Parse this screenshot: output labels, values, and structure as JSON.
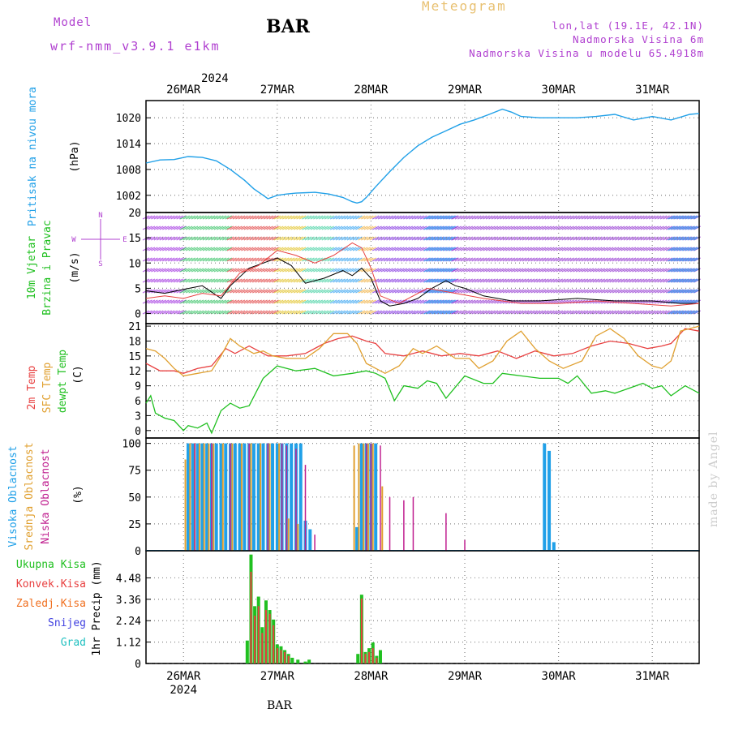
{
  "header": {
    "model_label": "Model",
    "model_name": "wrf-nmm_v3.9.1 e1km",
    "station": "BAR",
    "meteogram_label": "Meteogram",
    "location": "lon,lat (19.1E, 42.1N)",
    "elevation": "Nadmorska Visina 6m",
    "model_elevation": "Nadmorska Visina u modelu 65.4918m"
  },
  "footer_station": "BAR",
  "watermark": "made by Angel",
  "colors": {
    "pressure": "#20a0e8",
    "temp_2m": "#e84040",
    "temp_sfc": "#e0a030",
    "dewpoint": "#20c020",
    "cloud_high": "#20a0e8",
    "cloud_mid": "#e0a030",
    "cloud_low": "#c02090",
    "precip_total": "#20c020",
    "precip_conv": "#e84040",
    "precip_frozen": "#f07020",
    "snow": "#4040e0",
    "hail": "#20c0c0",
    "header_text": "#b040d0"
  },
  "chart_data": [
    {
      "type": "line",
      "panel": "pressure",
      "ylabel_primary": "Pritisak na nivou mora",
      "ylabel_unit": "(hPa)",
      "ylim": [
        998,
        1024
      ],
      "yticks": [
        1002,
        1008,
        1014,
        1020
      ],
      "xlim": [
        25.6,
        31.5
      ],
      "grid": true,
      "top_axis": {
        "year": "2024",
        "labels": [
          "26MAR",
          "27MAR",
          "28MAR",
          "29MAR",
          "30MAR",
          "31MAR"
        ]
      },
      "series": [
        {
          "x": [
            25.6,
            25.75,
            25.9,
            26.05,
            26.2,
            26.35,
            26.5,
            26.65,
            26.75,
            26.85,
            26.9,
            27.0,
            27.1,
            27.2,
            27.4,
            27.55,
            27.7,
            27.8,
            27.85,
            27.9,
            27.95,
            28.05,
            28.2,
            28.35,
            28.5,
            28.65,
            28.8,
            28.95,
            29.1,
            29.25,
            29.4,
            29.5,
            29.6,
            29.8,
            30.0,
            30.2,
            30.4,
            30.6,
            30.8,
            31.0,
            31.2,
            31.4,
            31.5
          ],
          "y": [
            1009.5,
            1010.2,
            1010.3,
            1011.0,
            1010.8,
            1010.0,
            1008.0,
            1005.5,
            1003.5,
            1002.0,
            1001.2,
            1002.0,
            1002.3,
            1002.5,
            1002.7,
            1002.3,
            1001.5,
            1000.5,
            1000.2,
            1000.5,
            1001.5,
            1004.0,
            1007.5,
            1010.8,
            1013.5,
            1015.5,
            1017.0,
            1018.5,
            1019.5,
            1020.7,
            1022.0,
            1021.3,
            1020.3,
            1020.0,
            1020.0,
            1020.0,
            1020.3,
            1020.8,
            1019.5,
            1020.3,
            1019.5,
            1020.8,
            1021.0
          ]
        }
      ]
    },
    {
      "type": "line",
      "panel": "wind",
      "ylabel_primary": [
        "10m Vjetar",
        "Brzina i Pravac"
      ],
      "ylabel_unit": "(m/s)",
      "compass": {
        "north": "N",
        "west": "W",
        "east": "E",
        "south": "S"
      },
      "ylim": [
        -2,
        20
      ],
      "yticks": [
        0,
        5,
        10,
        15,
        20
      ],
      "xlim": [
        25.6,
        31.5
      ],
      "grid": true,
      "series": [
        {
          "name": "speed",
          "x": [
            25.6,
            25.8,
            26.0,
            26.2,
            26.4,
            26.5,
            26.7,
            26.85,
            27.0,
            27.15,
            27.3,
            27.5,
            27.7,
            27.8,
            27.9,
            28.0,
            28.1,
            28.2,
            28.35,
            28.5,
            28.65,
            28.8,
            28.9,
            29.0,
            29.2,
            29.5,
            29.8,
            30.2,
            30.6,
            31.0,
            31.3,
            31.5
          ],
          "y": [
            4.5,
            4.0,
            4.8,
            5.5,
            3.0,
            5.5,
            9.0,
            10.0,
            11.0,
            9.5,
            6.0,
            7.0,
            8.5,
            7.5,
            9.0,
            7.0,
            2.5,
            1.5,
            2.0,
            3.0,
            5.0,
            6.5,
            5.5,
            5.0,
            3.5,
            2.5,
            2.5,
            3.0,
            2.5,
            2.5,
            2.0,
            2.0
          ]
        },
        {
          "name": "gust",
          "x": [
            25.6,
            25.8,
            26.0,
            26.2,
            26.4,
            26.6,
            26.8,
            27.0,
            27.2,
            27.4,
            27.6,
            27.8,
            27.9,
            28.0,
            28.1,
            28.3,
            28.6,
            28.9,
            29.2,
            29.6,
            30.0,
            30.4,
            30.8,
            31.2,
            31.5
          ],
          "y": [
            3.0,
            3.5,
            3.0,
            4.0,
            3.5,
            8.0,
            9.5,
            12.5,
            11.5,
            10.0,
            11.5,
            14.0,
            13.0,
            9.0,
            3.5,
            2.0,
            5.0,
            4.0,
            3.0,
            2.0,
            2.0,
            2.5,
            2.0,
            1.5,
            2.0
          ]
        }
      ]
    },
    {
      "type": "line",
      "panel": "temperature",
      "ylabel_lines": [
        "2m Temp",
        "SFC Temp",
        "dewpt Temp"
      ],
      "ylabel_unit": "(C)",
      "ylim": [
        -1.5,
        21.5
      ],
      "yticks": [
        0,
        3,
        6,
        9,
        12,
        15,
        18,
        21
      ],
      "xlim": [
        25.6,
        31.5
      ],
      "grid": true,
      "series": [
        {
          "name": "2m Temp",
          "x": [
            25.6,
            25.75,
            25.9,
            26.0,
            26.15,
            26.3,
            26.45,
            26.55,
            26.7,
            26.9,
            27.1,
            27.3,
            27.5,
            27.65,
            27.8,
            27.95,
            28.05,
            28.15,
            28.35,
            28.55,
            28.75,
            28.95,
            29.15,
            29.35,
            29.55,
            29.75,
            29.95,
            30.15,
            30.35,
            30.55,
            30.75,
            30.95,
            31.1,
            31.2,
            31.35,
            31.5
          ],
          "y": [
            13.5,
            12.0,
            12.0,
            11.5,
            12.5,
            13.0,
            16.5,
            15.5,
            17.0,
            15.0,
            15.0,
            15.5,
            17.5,
            18.5,
            19.0,
            18.0,
            17.5,
            15.5,
            15.0,
            16.0,
            15.0,
            15.5,
            15.0,
            16.0,
            14.5,
            16.0,
            15.0,
            15.5,
            17.0,
            18.0,
            17.5,
            16.5,
            17.0,
            17.5,
            20.5,
            20.0
          ]
        },
        {
          "name": "SFC Temp",
          "x": [
            25.6,
            25.7,
            25.8,
            25.9,
            26.0,
            26.15,
            26.3,
            26.4,
            26.5,
            26.6,
            26.75,
            26.85,
            26.95,
            27.1,
            27.3,
            27.45,
            27.6,
            27.75,
            27.85,
            27.95,
            28.05,
            28.15,
            28.3,
            28.45,
            28.55,
            28.7,
            28.9,
            29.05,
            29.15,
            29.3,
            29.45,
            29.6,
            29.75,
            29.9,
            30.05,
            30.25,
            30.4,
            30.55,
            30.7,
            30.85,
            31.0,
            31.1,
            31.2,
            31.3,
            31.4,
            31.5
          ],
          "y": [
            16.5,
            16.0,
            14.5,
            12.5,
            11.0,
            11.5,
            12.0,
            15.0,
            18.5,
            17.0,
            15.5,
            16.0,
            15.0,
            14.5,
            14.5,
            16.5,
            19.5,
            19.5,
            17.5,
            13.5,
            12.5,
            11.5,
            13.0,
            16.5,
            15.5,
            17.0,
            14.5,
            14.5,
            12.5,
            14.0,
            18.0,
            20.0,
            16.5,
            14.0,
            12.5,
            14.0,
            19.0,
            20.5,
            18.5,
            15.0,
            13.0,
            12.5,
            14.0,
            20.0,
            20.5,
            21.0
          ]
        },
        {
          "name": "dewpt Temp",
          "x": [
            25.6,
            25.65,
            25.7,
            25.8,
            25.9,
            26.0,
            26.05,
            26.15,
            26.25,
            26.3,
            26.4,
            26.5,
            26.6,
            26.7,
            26.85,
            27.0,
            27.2,
            27.4,
            27.6,
            27.8,
            27.95,
            28.05,
            28.15,
            28.25,
            28.35,
            28.5,
            28.6,
            28.7,
            28.8,
            29.0,
            29.2,
            29.3,
            29.4,
            29.6,
            29.8,
            30.0,
            30.1,
            30.2,
            30.35,
            30.5,
            30.6,
            30.75,
            30.9,
            31.0,
            31.1,
            31.2,
            31.35,
            31.5
          ],
          "y": [
            5.5,
            7.0,
            3.5,
            2.5,
            2.0,
            0.0,
            1.0,
            0.5,
            1.5,
            -0.5,
            4.0,
            5.5,
            4.5,
            5.0,
            10.5,
            13.0,
            12.0,
            12.5,
            11.0,
            11.5,
            12.0,
            11.5,
            10.5,
            6.0,
            9.0,
            8.5,
            10.0,
            9.5,
            6.5,
            11.0,
            9.5,
            9.5,
            11.5,
            11.0,
            10.5,
            10.5,
            9.5,
            11.0,
            7.5,
            8.0,
            7.5,
            8.5,
            9.5,
            8.5,
            9.0,
            7.0,
            9.0,
            7.5
          ]
        }
      ]
    },
    {
      "type": "bar",
      "panel": "cloud",
      "ylabel_lines": [
        "Visoka Oblacnost",
        "Srednja Oblacnost",
        "Niska Oblacnost"
      ],
      "ylabel_unit": "(%)",
      "ylim": [
        0,
        105
      ],
      "yticks": [
        0,
        25,
        50,
        75,
        100
      ],
      "xlim": [
        25.6,
        31.5
      ],
      "grid": true,
      "series": [
        {
          "name": "Visoka Oblacnost",
          "x": [
            26.05,
            26.1,
            26.15,
            26.2,
            26.25,
            26.3,
            26.35,
            26.4,
            26.45,
            26.5,
            26.55,
            26.6,
            26.65,
            26.7,
            26.75,
            26.8,
            26.85,
            26.9,
            26.95,
            27.0,
            27.05,
            27.1,
            27.15,
            27.2,
            27.25,
            27.3,
            27.35,
            27.85,
            27.9,
            27.95,
            28.0,
            28.05,
            29.85,
            29.9,
            29.95
          ],
          "y": [
            100,
            100,
            100,
            100,
            100,
            100,
            100,
            100,
            100,
            100,
            100,
            100,
            100,
            100,
            100,
            100,
            100,
            100,
            100,
            100,
            100,
            100,
            100,
            100,
            100,
            28,
            20,
            22,
            100,
            100,
            100,
            100,
            100,
            93,
            8
          ]
        },
        {
          "name": "Srednja Oblacnost",
          "x": [
            26.02,
            26.07,
            26.12,
            26.17,
            26.22,
            26.27,
            26.32,
            26.42,
            26.52,
            26.62,
            26.72,
            26.82,
            26.92,
            27.02,
            27.12,
            27.22,
            27.82,
            27.87,
            27.92,
            27.97,
            28.02,
            28.12
          ],
          "y": [
            85,
            100,
            100,
            100,
            100,
            100,
            100,
            100,
            100,
            100,
            100,
            100,
            100,
            100,
            30,
            25,
            98,
            100,
            100,
            100,
            100,
            60
          ]
        },
        {
          "name": "Niska Oblacnost",
          "x": [
            26.12,
            26.3,
            26.5,
            26.7,
            26.9,
            27.05,
            27.1,
            27.2,
            27.3,
            27.4,
            27.95,
            28.0,
            28.1,
            28.2,
            28.35,
            28.45,
            28.8,
            29.0
          ],
          "y": [
            100,
            100,
            100,
            100,
            100,
            100,
            98,
            95,
            80,
            15,
            100,
            100,
            98,
            50,
            47,
            50,
            35,
            10
          ]
        }
      ]
    },
    {
      "type": "bar",
      "panel": "precip",
      "ylabel_unit": "1hr Precip (mm)",
      "legend": [
        "Ukupna Kisa",
        "Konvek.Kisa",
        "Zaledj.Kisa",
        "Snijeg",
        "Grad"
      ],
      "ylim": [
        0,
        5.9
      ],
      "yticks": [
        0,
        1.12,
        2.24,
        3.36,
        4.48
      ],
      "xlim": [
        25.6,
        31.5
      ],
      "grid": true,
      "bottom_axis": {
        "labels": [
          "26MAR",
          "27MAR",
          "28MAR",
          "29MAR",
          "30MAR",
          "31MAR"
        ],
        "year": "2024"
      },
      "series": [
        {
          "name": "Ukupna Kisa",
          "x": [
            26.68,
            26.72,
            26.76,
            26.8,
            26.84,
            26.88,
            26.92,
            26.96,
            27.0,
            27.04,
            27.08,
            27.12,
            27.16,
            27.22,
            27.3,
            27.34,
            27.86,
            27.9,
            27.94,
            27.98,
            28.02,
            28.06,
            28.1
          ],
          "y": [
            1.2,
            5.7,
            3.0,
            3.5,
            1.9,
            3.3,
            2.8,
            2.3,
            1.0,
            0.9,
            0.7,
            0.5,
            0.3,
            0.2,
            0.1,
            0.2,
            0.5,
            3.6,
            0.6,
            0.8,
            1.1,
            0.4,
            0.7
          ]
        },
        {
          "name": "Konvek.Kisa",
          "x": [
            26.72,
            26.76,
            26.8,
            26.84,
            26.88,
            26.92,
            26.96,
            27.0,
            27.04,
            27.08,
            27.12,
            27.9,
            27.94,
            27.98,
            28.02,
            28.06
          ],
          "y": [
            4.8,
            2.5,
            3.0,
            1.6,
            2.8,
            2.6,
            2.0,
            0.8,
            0.7,
            0.6,
            0.4,
            3.4,
            0.5,
            0.6,
            0.8,
            0.3
          ]
        }
      ],
      "xtick_labels": [
        "26MAR",
        "27MAR",
        "28MAR",
        "29MAR",
        "30MAR",
        "31MAR"
      ]
    }
  ]
}
